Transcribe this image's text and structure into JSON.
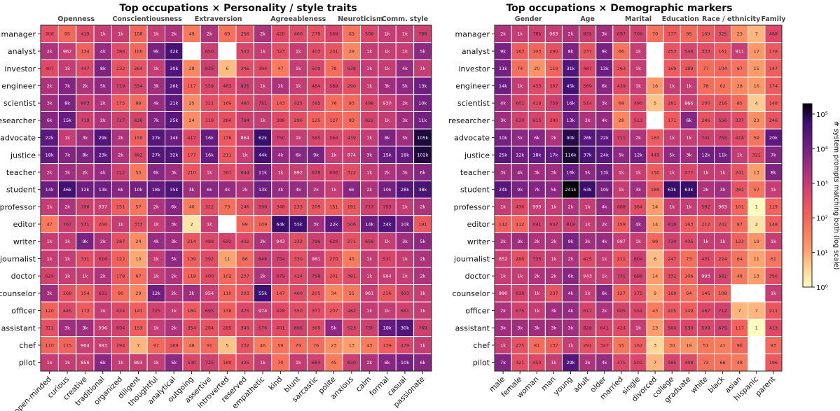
{
  "chart_data": [
    {
      "type": "heatmap",
      "title": "Top occupations × Personality / style traits",
      "rows": [
        "manager",
        "analyst",
        "investor",
        "engineer",
        "scientist",
        "researcher",
        "advocate",
        "justice",
        "teacher",
        "student",
        "professor",
        "editor",
        "writer",
        "journalist",
        "doctor",
        "counselor",
        "officer",
        "assistant",
        "chef",
        "pilot"
      ],
      "columns": [
        "open-minded",
        "curious",
        "creative",
        "traditional",
        "organized",
        "diligent",
        "thoughtful",
        "analytical",
        "outgoing",
        "assertive",
        "introverted",
        "reserved",
        "empathetic",
        "kind",
        "blunt",
        "sarcastic",
        "polite",
        "anxious",
        "calm",
        "formal",
        "casual",
        "passionate"
      ],
      "groups": [
        {
          "label": "Openness",
          "span": [
            0,
            3
          ]
        },
        {
          "label": "Conscientiousness",
          "span": [
            4,
            7
          ]
        },
        {
          "label": "Extraversion",
          "span": [
            8,
            11
          ]
        },
        {
          "label": "Agreeableness",
          "span": [
            12,
            16
          ]
        },
        {
          "label": "Neuroticism",
          "span": [
            17,
            18
          ]
        },
        {
          "label": "Comm. style",
          "span": [
            19,
            21
          ]
        }
      ],
      "values": [
        [
          "306",
          "95",
          "419",
          "1k",
          "1k",
          "108",
          "1k",
          "2k",
          "49",
          "2k",
          "69",
          "256",
          "2k",
          "420",
          "400",
          "278",
          "569",
          "63",
          "508",
          "1k",
          "1k",
          "798"
        ],
        [
          "2k",
          "962",
          "134",
          "4k",
          "386",
          "100",
          "9k",
          "42k",
          "·",
          "850",
          "·",
          "503",
          "1k",
          "323",
          "1k",
          "403",
          "241",
          "29",
          "1k",
          "1k",
          "1k",
          "5k"
        ],
        [
          "407",
          "1k",
          "447",
          "8k",
          "232",
          "264",
          "1k",
          "30k",
          "28",
          "835",
          "6",
          "346",
          "394",
          "47",
          "1k",
          "509",
          "78",
          "538",
          "1k",
          "1k",
          "4k",
          "1k"
        ],
        [
          "2k",
          "7k",
          "2k",
          "5k",
          "719",
          "554",
          "3k",
          "26k",
          "117",
          "559",
          "483",
          "826",
          "1k",
          "2k",
          "1k",
          "484",
          "569",
          "290",
          "1k",
          "3k",
          "5k",
          "13k"
        ],
        [
          "3k",
          "8k",
          "803",
          "2k",
          "175",
          "89",
          "4k",
          "21k",
          "25",
          "321",
          "169",
          "460",
          "751",
          "143",
          "425",
          "385",
          "76",
          "93",
          "498",
          "930",
          "2k",
          "10k"
        ],
        [
          "6k",
          "15k",
          "719",
          "2k",
          "727",
          "636",
          "7k",
          "25k",
          "24",
          "319",
          "284",
          "784",
          "1k",
          "388",
          "296",
          "125",
          "127",
          "83",
          "622",
          "1k",
          "3k",
          "11k"
        ],
        [
          "22k",
          "1k",
          "3k",
          "29k",
          "2k",
          "150",
          "27k",
          "14k",
          "417",
          "16k",
          "178",
          "864",
          "62k",
          "750",
          "1k",
          "585",
          "564",
          "439",
          "1k",
          "8k",
          "3k",
          "105k"
        ],
        [
          "18k",
          "7k",
          "8k",
          "23k",
          "2k",
          "482",
          "27k",
          "32k",
          "177",
          "16k",
          "211",
          "1k",
          "44k",
          "4k",
          "6k",
          "9k",
          "1k",
          "874",
          "3k",
          "15k",
          "18k",
          "102k"
        ],
        [
          "2k",
          "3k",
          "2k",
          "4k",
          "712",
          "50",
          "6k",
          "3k",
          "210",
          "1k",
          "367",
          "644",
          "11k",
          "1k",
          "892",
          "678",
          "606",
          "322",
          "1k",
          "2k",
          "3k",
          "6k"
        ],
        [
          "14k",
          "46k",
          "12k",
          "13k",
          "6k",
          "10k",
          "18k",
          "35k",
          "3k",
          "6k",
          "4k",
          "2k",
          "13k",
          "4k",
          "4k",
          "2k",
          "1k",
          "6k",
          "2k",
          "10k",
          "28k",
          "38k"
        ],
        [
          "1k",
          "2k",
          "706",
          "937",
          "151",
          "57",
          "2k",
          "6k",
          "40",
          "322",
          "73",
          "246",
          "590",
          "348",
          "233",
          "209",
          "151",
          "191",
          "717",
          "793",
          "1k",
          "2k"
        ],
        [
          "47",
          "767",
          "531",
          "266",
          "1k",
          "333",
          "1k",
          "3k",
          "2",
          "1k",
          "·",
          "99",
          "109",
          "64k",
          "55k",
          "3k",
          "22k",
          "506",
          "14k",
          "34k",
          "10k",
          "191"
        ],
        [
          "1k",
          "1k",
          "9k",
          "2k",
          "287",
          "24",
          "4k",
          "3k",
          "214",
          "489",
          "632",
          "432",
          "2k",
          "943",
          "332",
          "796",
          "628",
          "271",
          "658",
          "1k",
          "3k",
          "5k"
        ],
        [
          "1k",
          "1k",
          "331",
          "616",
          "122",
          "10",
          "1k",
          "5k",
          "139",
          "392",
          "11",
          "86",
          "848",
          "754",
          "330",
          "981",
          "270",
          "45",
          "1k",
          "531",
          "1k",
          "2k"
        ],
        [
          "624",
          "1k",
          "1k",
          "2k",
          "178",
          "67",
          "1k",
          "2k",
          "118",
          "400",
          "102",
          "237",
          "2k",
          "679",
          "424",
          "758",
          "201",
          "381",
          "1k",
          "964",
          "1k",
          "2k"
        ],
        [
          "3k",
          "268",
          "154",
          "632",
          "90",
          "29",
          "12k",
          "2k",
          "3k",
          "954",
          "110",
          "203",
          "55k",
          "147",
          "400",
          "205",
          "34",
          "55",
          "961",
          "216",
          "603",
          "1k"
        ],
        [
          "120",
          "445",
          "173",
          "1k",
          "424",
          "141",
          "725",
          "1k",
          "184",
          "695",
          "138",
          "475",
          "974",
          "428",
          "350",
          "377",
          "207",
          "482",
          "1k",
          "1k",
          "681",
          "1k"
        ],
        [
          "311",
          "3k",
          "3k",
          "996",
          "694",
          "153",
          "1k",
          "2k",
          "354",
          "284",
          "289",
          "345",
          "576",
          "401",
          "696",
          "369",
          "5k",
          "523",
          "730",
          "18k",
          "30k",
          "769"
        ],
        [
          "110",
          "115",
          "904",
          "883",
          "294",
          "7",
          "97",
          "189",
          "48",
          "91",
          "5",
          "232",
          "46",
          "59",
          "79",
          "76",
          "23",
          "13",
          "43",
          "139",
          "479",
          "1k"
        ],
        [
          "1k",
          "1k",
          "856",
          "6k",
          "1k",
          "893",
          "1k",
          "5k",
          "530",
          "725",
          "189",
          "425",
          "1k",
          "70",
          "1k",
          "684",
          "45",
          "830",
          "2k",
          "6k",
          "10k",
          "6k"
        ]
      ]
    },
    {
      "type": "heatmap",
      "title": "Top occupations × Demographic markers",
      "rows": [
        "manager",
        "analyst",
        "investor",
        "engineer",
        "scientist",
        "researcher",
        "advocate",
        "justice",
        "teacher",
        "student",
        "professor",
        "editor",
        "writer",
        "journalist",
        "doctor",
        "counselor",
        "officer",
        "assistant",
        "chef",
        "pilot"
      ],
      "columns": [
        "male",
        "female",
        "woman",
        "man",
        "young",
        "adult",
        "older",
        "married",
        "single",
        "divorced",
        "college",
        "graduate",
        "white",
        "black",
        "asian",
        "hispanic",
        "parent"
      ],
      "groups": [
        {
          "label": "Gender",
          "span": [
            0,
            3
          ]
        },
        {
          "label": "Age",
          "span": [
            4,
            6
          ]
        },
        {
          "label": "Marital",
          "span": [
            7,
            9
          ]
        },
        {
          "label": "Education",
          "span": [
            10,
            11
          ]
        },
        {
          "label": "Race / ethnicity",
          "span": [
            12,
            15
          ]
        },
        {
          "label": "Family",
          "span": [
            16,
            16
          ]
        }
      ],
      "values": [
        [
          "2k",
          "1k",
          "785",
          "963",
          "2k",
          "835",
          "3k",
          "697",
          "706",
          "70",
          "177",
          "95",
          "169",
          "325",
          "23",
          "7",
          "468"
        ],
        [
          "9k",
          "163",
          "103",
          "290",
          "8k",
          "237",
          "9k",
          "66",
          "1k",
          "·",
          "253",
          "546",
          "333",
          "161",
          "911",
          "17",
          "178"
        ],
        [
          "11k",
          "74",
          "20",
          "119",
          "31k",
          "487",
          "13k",
          "263",
          "1k",
          "·",
          "169",
          "189",
          "77",
          "104",
          "67",
          "15",
          "147"
        ],
        [
          "14k",
          "1k",
          "433",
          "387",
          "45k",
          "569",
          "6k",
          "439",
          "1k",
          "16",
          "1k",
          "1k",
          "78",
          "62",
          "28",
          "16",
          "174"
        ],
        [
          "4k",
          "601",
          "419",
          "758",
          "16k",
          "514",
          "3k",
          "68",
          "490",
          "5",
          "261",
          "866",
          "200",
          "216",
          "85",
          "4",
          "148"
        ],
        [
          "3k",
          "630",
          "615",
          "390",
          "13k",
          "2k",
          "4k",
          "28",
          "513",
          "·",
          "171",
          "6k",
          "246",
          "556",
          "337",
          "23",
          "246"
        ],
        [
          "10k",
          "5k",
          "6k",
          "2k",
          "90k",
          "26k",
          "22k",
          "711",
          "2k",
          "163",
          "1k",
          "1k",
          "701",
          "755",
          "418",
          "59",
          "20k"
        ],
        [
          "25k",
          "12k",
          "18k",
          "17k",
          "116k",
          "37k",
          "24k",
          "5k",
          "12k",
          "449",
          "5k",
          "3k",
          "12k",
          "11k",
          "1k",
          "321",
          "7k"
        ],
        [
          "3k",
          "4k",
          "3k",
          "3k",
          "16k",
          "5k",
          "13k",
          "1k",
          "1k",
          "150",
          "1k",
          "477",
          "1k",
          "1k",
          "241",
          "13",
          "8k"
        ],
        [
          "24k",
          "9k",
          "7k",
          "5k",
          "241k",
          "63k",
          "10k",
          "1k",
          "3k",
          "189",
          "63k",
          "63k",
          "2k",
          "3k",
          "282",
          "57",
          "1k"
        ],
        [
          "1k",
          "436",
          "999",
          "1k",
          "2k",
          "1k",
          "4k",
          "688",
          "364",
          "14",
          "1k",
          "1k",
          "592",
          "963",
          "101",
          "1",
          "119"
        ],
        [
          "142",
          "112",
          "691",
          "647",
          "818",
          "1k",
          "2k",
          "159",
          "4k",
          "14",
          "816",
          "163",
          "212",
          "242",
          "87",
          "2",
          "148"
        ],
        [
          "2k",
          "3k",
          "2k",
          "2k",
          "9k",
          "3k",
          "4k",
          "987",
          "1k",
          "99",
          "734",
          "435",
          "1k",
          "1k",
          "123",
          "19",
          "1k"
        ],
        [
          "852",
          "286",
          "735",
          "1k",
          "2k",
          "425",
          "1k",
          "211",
          "804",
          "6",
          "247",
          "73",
          "431",
          "224",
          "64",
          "11",
          "61"
        ],
        [
          "1k",
          "1k",
          "2k",
          "2k",
          "6k",
          "943",
          "1k",
          "731",
          "686",
          "14",
          "332",
          "106",
          "993",
          "582",
          "48",
          "13",
          "356"
        ],
        [
          "990",
          "638",
          "1k",
          "237",
          "4k",
          "1k",
          "6k",
          "127",
          "375",
          "9",
          "169",
          "64",
          "146",
          "108",
          "·",
          "·",
          "1k"
        ],
        [
          "2k",
          "675",
          "1k",
          "3k",
          "4k",
          "617",
          "2k",
          "605",
          "554",
          "43",
          "205",
          "149",
          "467",
          "712",
          "7",
          "7",
          "211"
        ],
        [
          "3k",
          "3k",
          "3k",
          "3k",
          "3k",
          "828",
          "641",
          "424",
          "1k",
          "13",
          "564",
          "530",
          "508",
          "679",
          "117",
          "1",
          "413"
        ],
        [
          "1k",
          "275",
          "81",
          "137",
          "1k",
          "292",
          "347",
          "55",
          "162",
          "3",
          "30",
          "19",
          "51",
          "41",
          "96",
          "·",
          "93"
        ],
        [
          "7k",
          "321",
          "450",
          "1k",
          "29k",
          "2k",
          "4k",
          "475",
          "501",
          "7",
          "585",
          "408",
          "73",
          "66",
          "48",
          "·",
          "196"
        ]
      ]
    }
  ],
  "colorbar": {
    "label": "# system prompts matching both (log scale)",
    "ticks": [
      "10⁵",
      "10⁴",
      "10³",
      "10²",
      "10¹",
      "10⁰"
    ],
    "scale": "log",
    "range": [
      1,
      200000
    ]
  }
}
